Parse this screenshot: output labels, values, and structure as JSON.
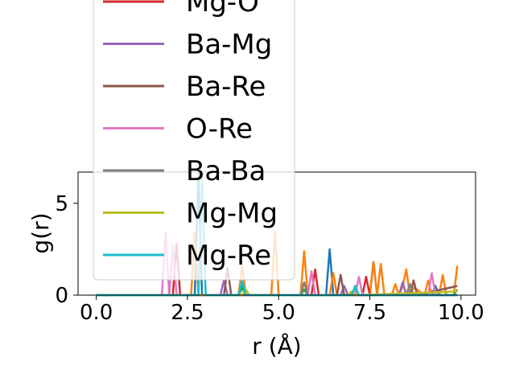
{
  "chart_data": {
    "type": "line",
    "xlabel": "r (Å)",
    "ylabel": "g(r)",
    "xlim": [
      -0.5,
      10.4
    ],
    "ylim": [
      0,
      6.7
    ],
    "xticks": [
      0.0,
      2.5,
      5.0,
      7.5,
      10.0
    ],
    "xtick_labels": [
      "0.0",
      "2.5",
      "5.0",
      "7.5",
      "10.0"
    ],
    "yticks": [
      0,
      5
    ],
    "ytick_labels": [
      "0",
      "5"
    ],
    "legend": {
      "location": "upper-left",
      "entries_visible": [
        "Mg-O",
        "Ba-Mg",
        "Ba-Re",
        "O-Re",
        "Ba-Ba",
        "Mg-Mg",
        "Mg-Re"
      ]
    },
    "series": [
      {
        "name": "",
        "color": "#1f77b4",
        "x": [
          0,
          2.7,
          2.8,
          2.9,
          3.9,
          4.0,
          4.1,
          6.3,
          6.4,
          6.5,
          7.5,
          7.6,
          7.7,
          9.2,
          9.3,
          9.4,
          9.9
        ],
        "y": [
          0,
          0,
          6.6,
          0,
          0,
          0.7,
          0,
          0,
          2.5,
          0,
          0,
          1.8,
          0,
          0,
          0.5,
          0,
          0
        ]
      },
      {
        "name": "",
        "color": "#ff7f0e",
        "x": [
          0,
          2.6,
          2.7,
          2.8,
          3.9,
          4.0,
          4.1,
          4.8,
          4.9,
          5.0,
          5.1,
          5.6,
          5.7,
          5.8,
          6.4,
          6.5,
          6.6,
          7.5,
          7.6,
          7.7,
          7.8,
          7.9,
          8.1,
          8.2,
          8.3,
          8.4,
          8.5,
          8.6,
          8.7,
          8.8,
          9.0,
          9.1,
          9.2,
          9.4,
          9.5,
          9.6,
          9.8,
          9.9
        ],
        "y": [
          0,
          0,
          3.4,
          0,
          0,
          1.6,
          0,
          0,
          3.5,
          0,
          0,
          0,
          2.4,
          0,
          0,
          1.2,
          0,
          0,
          1.8,
          0,
          1.7,
          0,
          0,
          0.6,
          0,
          0.5,
          1.4,
          0,
          0.4,
          0.3,
          0,
          0.8,
          0,
          0,
          1.1,
          0,
          0,
          1.6
        ]
      },
      {
        "name": "",
        "color": "#2ca02c",
        "x": [
          0,
          3.9,
          4.0,
          4.1,
          5.6,
          5.7,
          5.8,
          7.0,
          7.1,
          7.2,
          9.8,
          9.9
        ],
        "y": [
          0,
          0,
          0.4,
          0,
          0,
          0.3,
          0,
          0,
          0.4,
          0,
          0,
          0.3
        ]
      },
      {
        "name": "Mg-O",
        "color": "#d62728",
        "x": [
          0,
          2.1,
          2.2,
          2.3,
          5.9,
          6.0,
          6.1,
          7.3,
          7.4,
          7.5,
          9.9
        ],
        "y": [
          0,
          0,
          2.8,
          0,
          0,
          1.4,
          0,
          0,
          1.0,
          0,
          0
        ]
      },
      {
        "name": "Ba-Mg",
        "color": "#9467bd",
        "x": [
          0,
          3.4,
          3.5,
          3.6,
          6.7,
          6.8,
          6.9,
          8.3,
          8.4,
          8.5,
          9.9
        ],
        "y": [
          0,
          0,
          0.8,
          0,
          0,
          0.5,
          0,
          0,
          0.7,
          0,
          0
        ]
      },
      {
        "name": "Ba-Re",
        "color": "#8c564b",
        "x": [
          0,
          3.5,
          3.6,
          3.7,
          6.6,
          6.7,
          6.8,
          8.6,
          8.7,
          8.8,
          9.9
        ],
        "y": [
          0,
          0,
          1.5,
          0,
          0,
          1.1,
          0,
          0,
          0.8,
          0,
          0.5
        ]
      },
      {
        "name": "O-Re",
        "color": "#e377c2",
        "x": [
          0,
          1.8,
          1.9,
          2.0,
          2.1,
          2.2,
          5.8,
          5.9,
          6.0,
          7.1,
          7.2,
          7.3,
          9.1,
          9.2,
          9.3,
          9.9
        ],
        "y": [
          0,
          0,
          3.4,
          0,
          2.7,
          0,
          0,
          1.3,
          0,
          0,
          1.0,
          0,
          0,
          1.2,
          0,
          0
        ]
      },
      {
        "name": "Ba-Ba",
        "color": "#7f7f7f",
        "x": [
          0,
          5.6,
          5.7,
          5.8,
          8.5,
          8.6,
          8.7,
          9.9
        ],
        "y": [
          0,
          0,
          0.7,
          0,
          0,
          0.6,
          0,
          0
        ]
      },
      {
        "name": "Mg-Mg",
        "color": "#bcbd22",
        "x": [
          0,
          4.0,
          4.1,
          4.2,
          6.9,
          7.0,
          7.1,
          9.9
        ],
        "y": [
          0,
          0,
          0.3,
          0,
          0,
          0.2,
          0,
          0.2
        ]
      },
      {
        "name": "Mg-Re",
        "color": "#17becf",
        "x": [
          0,
          2.8,
          2.9,
          3.0,
          3.9,
          4.0,
          4.1,
          7.0,
          7.1,
          7.2,
          9.9
        ],
        "y": [
          0,
          0,
          6.2,
          0,
          0,
          0.8,
          0,
          0,
          0.5,
          0,
          0
        ]
      }
    ]
  }
}
